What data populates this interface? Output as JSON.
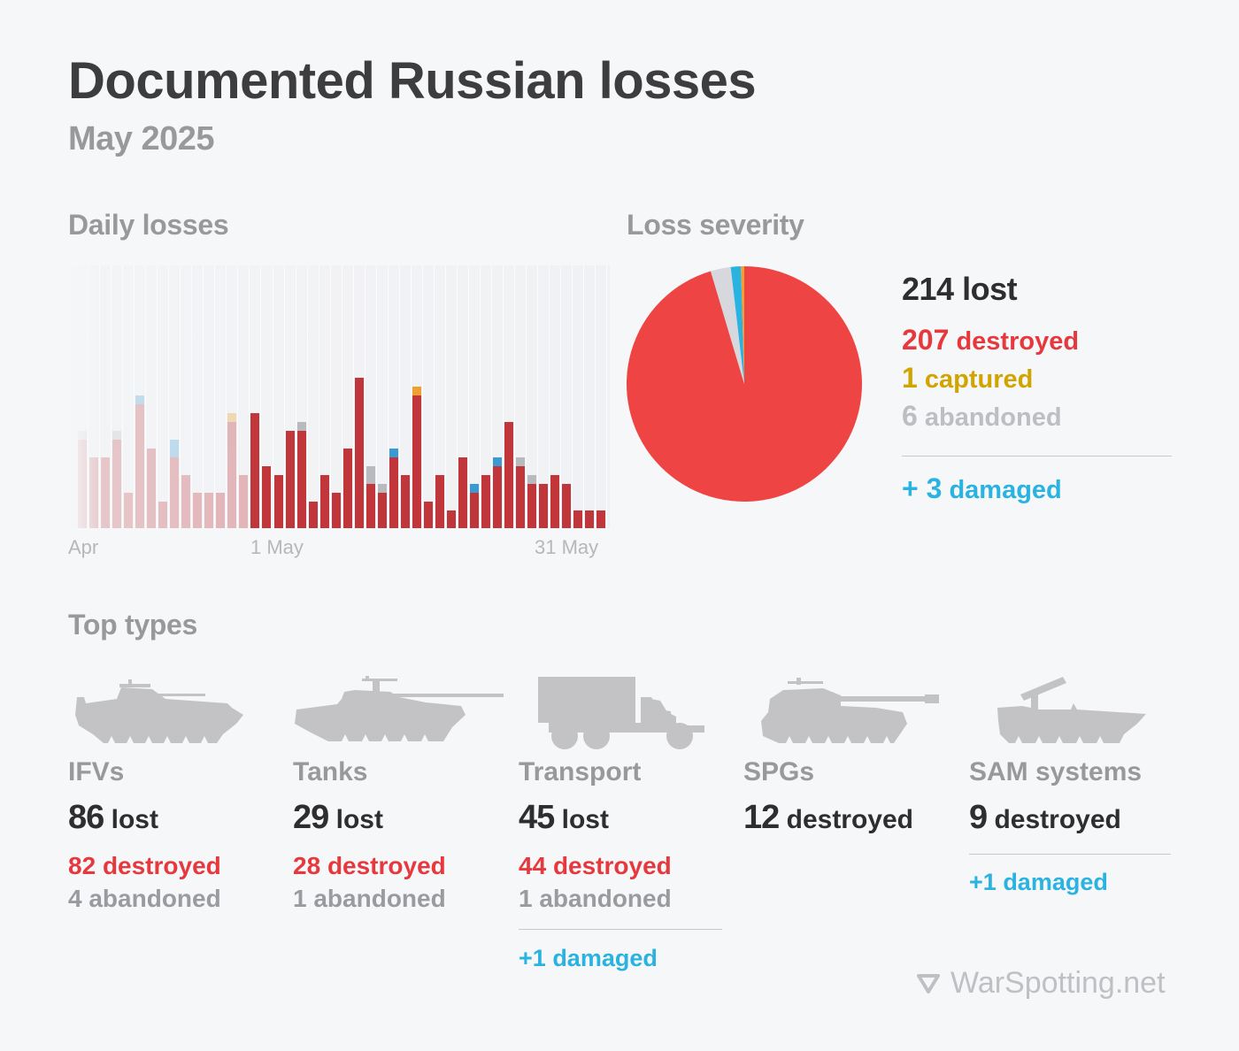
{
  "header": {
    "title": "Documented Russian losses",
    "subtitle": "May 2025"
  },
  "sections": {
    "daily": "Daily losses",
    "severity": "Loss severity",
    "top_types": "Top types"
  },
  "colors": {
    "destroyed": "#c1363a",
    "destroyed_pie": "#ef4444",
    "captured": "#f0a030",
    "abandoned": "#b9babd",
    "damaged": "#3a9ad4",
    "damaged_text": "#2ab3e0",
    "captured_text": "#d1a400"
  },
  "severity": {
    "total": "214",
    "total_label": "lost",
    "destroyed": "207",
    "destroyed_label": "destroyed",
    "captured": "1",
    "captured_label": "captured",
    "abandoned": "6",
    "abandoned_label": "abandoned",
    "damaged": "+ 3",
    "damaged_label": "damaged"
  },
  "top_types": [
    {
      "name": "IFVs",
      "lost": "86",
      "lost_label": "lost",
      "destroyed": "82",
      "destroyed_label": "destroyed",
      "abandoned": "4",
      "abandoned_label": "abandoned",
      "icon": "ifv-icon"
    },
    {
      "name": "Tanks",
      "lost": "29",
      "lost_label": "lost",
      "destroyed": "28",
      "destroyed_label": "destroyed",
      "abandoned": "1",
      "abandoned_label": "abandoned",
      "icon": "tank-icon"
    },
    {
      "name": "Transport",
      "lost": "45",
      "lost_label": "lost",
      "destroyed": "44",
      "destroyed_label": "destroyed",
      "abandoned": "1",
      "abandoned_label": "abandoned",
      "damaged": "+1",
      "damaged_label": "damaged",
      "icon": "truck-icon"
    },
    {
      "name": "SPGs",
      "destroyed": "12",
      "destroyed_label": "destroyed",
      "icon": "spg-icon"
    },
    {
      "name": "SAM systems",
      "destroyed": "9",
      "destroyed_label": "destroyed",
      "damaged": "+1",
      "damaged_label": "damaged",
      "icon": "sam-icon"
    }
  ],
  "footer": {
    "logo_text": "WarSpotting.net",
    "logo_icon": "triangle-down-icon"
  },
  "chart_data": [
    {
      "type": "bar",
      "title": "Daily losses",
      "stacked": true,
      "x_tick_labels": [
        "Apr",
        "1 May",
        "31 May"
      ],
      "note": "Last 15 days of April shown faded; May shown at full opacity",
      "categories": [
        "Apr 16",
        "Apr 17",
        "Apr 18",
        "Apr 19",
        "Apr 20",
        "Apr 21",
        "Apr 22",
        "Apr 23",
        "Apr 24",
        "Apr 25",
        "Apr 26",
        "Apr 27",
        "Apr 28",
        "Apr 29",
        "Apr 30",
        "May 1",
        "May 2",
        "May 3",
        "May 4",
        "May 5",
        "May 6",
        "May 7",
        "May 8",
        "May 9",
        "May 10",
        "May 11",
        "May 12",
        "May 13",
        "May 14",
        "May 15",
        "May 16",
        "May 17",
        "May 18",
        "May 19",
        "May 20",
        "May 21",
        "May 22",
        "May 23",
        "May 24",
        "May 25",
        "May 26",
        "May 27",
        "May 28",
        "May 29",
        "May 30",
        "May 31"
      ],
      "series": [
        {
          "name": "destroyed",
          "color": "#c1363a",
          "values": [
            10,
            8,
            8,
            10,
            4,
            14,
            9,
            3,
            8,
            6,
            4,
            4,
            4,
            12,
            6,
            13,
            7,
            6,
            11,
            11,
            3,
            6,
            4,
            9,
            17,
            5,
            4,
            8,
            6,
            15,
            3,
            6,
            2,
            8,
            4,
            6,
            7,
            12,
            7,
            5,
            5,
            6,
            5,
            2,
            2,
            2
          ]
        },
        {
          "name": "abandoned",
          "color": "#b9babd",
          "values": [
            1,
            0,
            0,
            1,
            0,
            0,
            0,
            0,
            0,
            0,
            0,
            0,
            0,
            0,
            0,
            0,
            0,
            0,
            0,
            1,
            0,
            0,
            0,
            0,
            0,
            2,
            1,
            0,
            0,
            0,
            0,
            0,
            0,
            0,
            0,
            0,
            0,
            0,
            1,
            1,
            0,
            0,
            0,
            0,
            0,
            0
          ]
        },
        {
          "name": "captured",
          "color": "#f0a030",
          "values": [
            0,
            0,
            0,
            0,
            0,
            0,
            0,
            0,
            0,
            0,
            0,
            0,
            0,
            1,
            0,
            0,
            0,
            0,
            0,
            0,
            0,
            0,
            0,
            0,
            0,
            0,
            0,
            0,
            0,
            1,
            0,
            0,
            0,
            0,
            0,
            0,
            0,
            0,
            0,
            0,
            0,
            0,
            0,
            0,
            0,
            0
          ]
        },
        {
          "name": "damaged",
          "color": "#3a9ad4",
          "values": [
            0,
            0,
            0,
            0,
            0,
            1,
            0,
            0,
            2,
            0,
            0,
            0,
            0,
            0,
            0,
            0,
            0,
            0,
            0,
            0,
            0,
            0,
            0,
            0,
            0,
            0,
            0,
            1,
            0,
            0,
            0,
            0,
            0,
            0,
            1,
            0,
            1,
            0,
            0,
            0,
            0,
            0,
            0,
            0,
            0,
            0
          ]
        }
      ],
      "ylim": [
        0,
        29
      ],
      "grid": false,
      "legend": false
    },
    {
      "type": "pie",
      "title": "Loss severity",
      "labels": [
        "destroyed",
        "captured",
        "damaged",
        "abandoned"
      ],
      "values": [
        207,
        1,
        3,
        6
      ],
      "colors": [
        "#ef4444",
        "#f0a030",
        "#2ab3e0",
        "#d6d8dd"
      ]
    }
  ]
}
